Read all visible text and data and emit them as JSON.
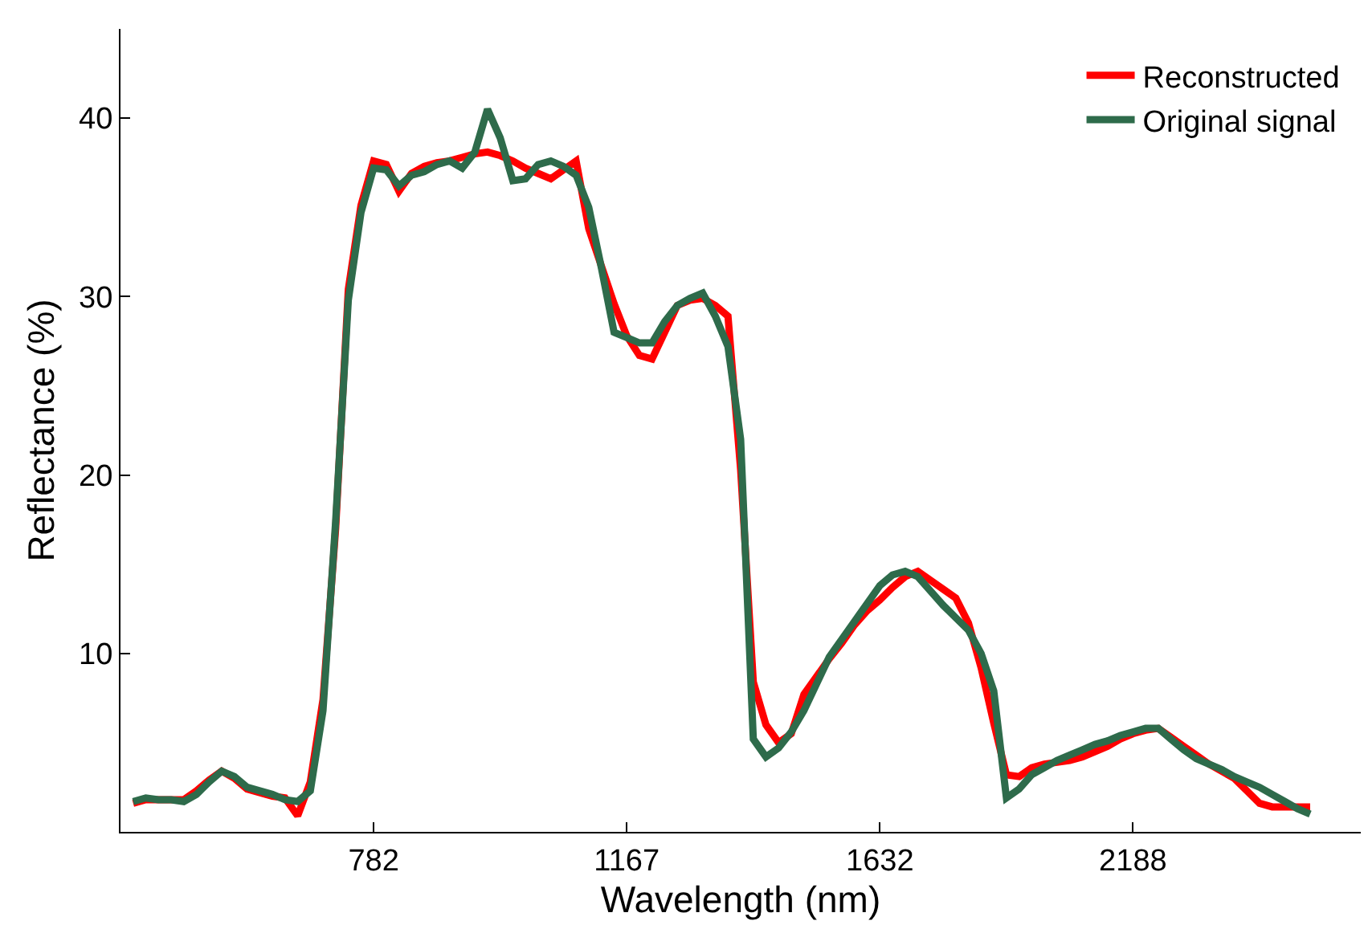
{
  "chart_data": {
    "type": "line",
    "xlabel": "Wavelength (nm)",
    "ylabel": "Reflectance (%)",
    "categories": [
      null,
      null,
      null,
      null,
      null,
      null,
      null,
      null,
      null,
      null,
      null,
      null,
      null,
      null,
      null,
      null,
      null,
      null,
      null,
      null,
      "782",
      null,
      null,
      null,
      null,
      null,
      null,
      null,
      null,
      null,
      null,
      null,
      null,
      null,
      null,
      null,
      null,
      null,
      null,
      null,
      "1167",
      null,
      null,
      null,
      null,
      null,
      null,
      null,
      null,
      null,
      null,
      null,
      null,
      null,
      null,
      null,
      null,
      null,
      null,
      null,
      "1632",
      null,
      null,
      null,
      null,
      null,
      null,
      null,
      null,
      null,
      null,
      null,
      null,
      null,
      null,
      null,
      null,
      null,
      null,
      null,
      "2188",
      null,
      null,
      null,
      null,
      null,
      null,
      null,
      null,
      null,
      null,
      null,
      null,
      null,
      null,
      null,
      null,
      null,
      null
    ],
    "ylim": [
      0,
      45
    ],
    "yticks": [
      10,
      20,
      30,
      40
    ],
    "legend": "top right",
    "marker": "none",
    "line_style": "solid",
    "series": [
      {
        "name": "Reconstructed",
        "color": "#ff0000",
        "values": [
          null,
          1.6,
          1.8,
          1.8,
          1.8,
          1.8,
          2.3,
          2.9,
          3.4,
          3.0,
          2.4,
          2.2,
          2.0,
          1.9,
          0.9,
          2.8,
          7.4,
          17.0,
          30.4,
          35.1,
          37.6,
          37.4,
          35.9,
          36.9,
          37.3,
          37.5,
          37.6,
          37.8,
          38.0,
          38.1,
          37.9,
          37.6,
          37.2,
          36.9,
          36.6,
          37.1,
          37.6,
          33.8,
          31.7,
          29.6,
          27.8,
          26.7,
          26.5,
          28.0,
          29.5,
          29.8,
          29.9,
          29.5,
          28.9,
          20.3,
          8.4,
          6.0,
          5.0,
          5.5,
          7.7,
          8.7,
          9.7,
          10.6,
          11.6,
          12.4,
          13.0,
          13.7,
          14.3,
          14.6,
          14.1,
          13.6,
          13.1,
          11.7,
          9.2,
          6.1,
          3.2,
          3.1,
          3.6,
          3.8,
          3.9,
          4.0,
          4.2,
          4.5,
          4.8,
          5.2,
          5.5,
          5.7,
          5.8,
          5.3,
          4.8,
          4.3,
          3.8,
          3.4,
          3.0,
          2.3,
          1.6,
          1.4,
          1.4,
          1.4,
          1.4,
          null,
          null,
          null,
          null
        ]
      },
      {
        "name": "Original signal",
        "color": "#2e6b4b",
        "values": [
          null,
          1.7,
          1.9,
          1.8,
          1.8,
          1.7,
          2.1,
          2.8,
          3.4,
          3.1,
          2.5,
          2.3,
          2.1,
          1.8,
          1.7,
          2.3,
          6.8,
          17.4,
          29.8,
          34.7,
          37.2,
          37.1,
          36.2,
          36.8,
          37.0,
          37.4,
          37.6,
          37.2,
          38.1,
          40.5,
          38.9,
          36.5,
          36.6,
          37.4,
          37.6,
          37.3,
          36.8,
          35.0,
          31.6,
          28.0,
          27.7,
          27.4,
          27.4,
          28.6,
          29.5,
          29.9,
          30.2,
          28.9,
          27.2,
          22.0,
          5.2,
          4.2,
          4.7,
          5.6,
          6.8,
          8.3,
          9.8,
          10.8,
          11.8,
          12.8,
          13.8,
          14.4,
          14.6,
          14.3,
          13.5,
          12.7,
          12.0,
          11.3,
          10.0,
          7.9,
          1.9,
          2.4,
          3.2,
          3.6,
          4.0,
          4.3,
          4.6,
          4.9,
          5.1,
          5.4,
          5.6,
          5.8,
          5.8,
          5.2,
          4.6,
          4.1,
          3.8,
          3.5,
          3.1,
          2.8,
          2.5,
          2.1,
          1.7,
          1.3,
          1.0,
          null,
          null,
          null,
          null
        ]
      }
    ]
  }
}
